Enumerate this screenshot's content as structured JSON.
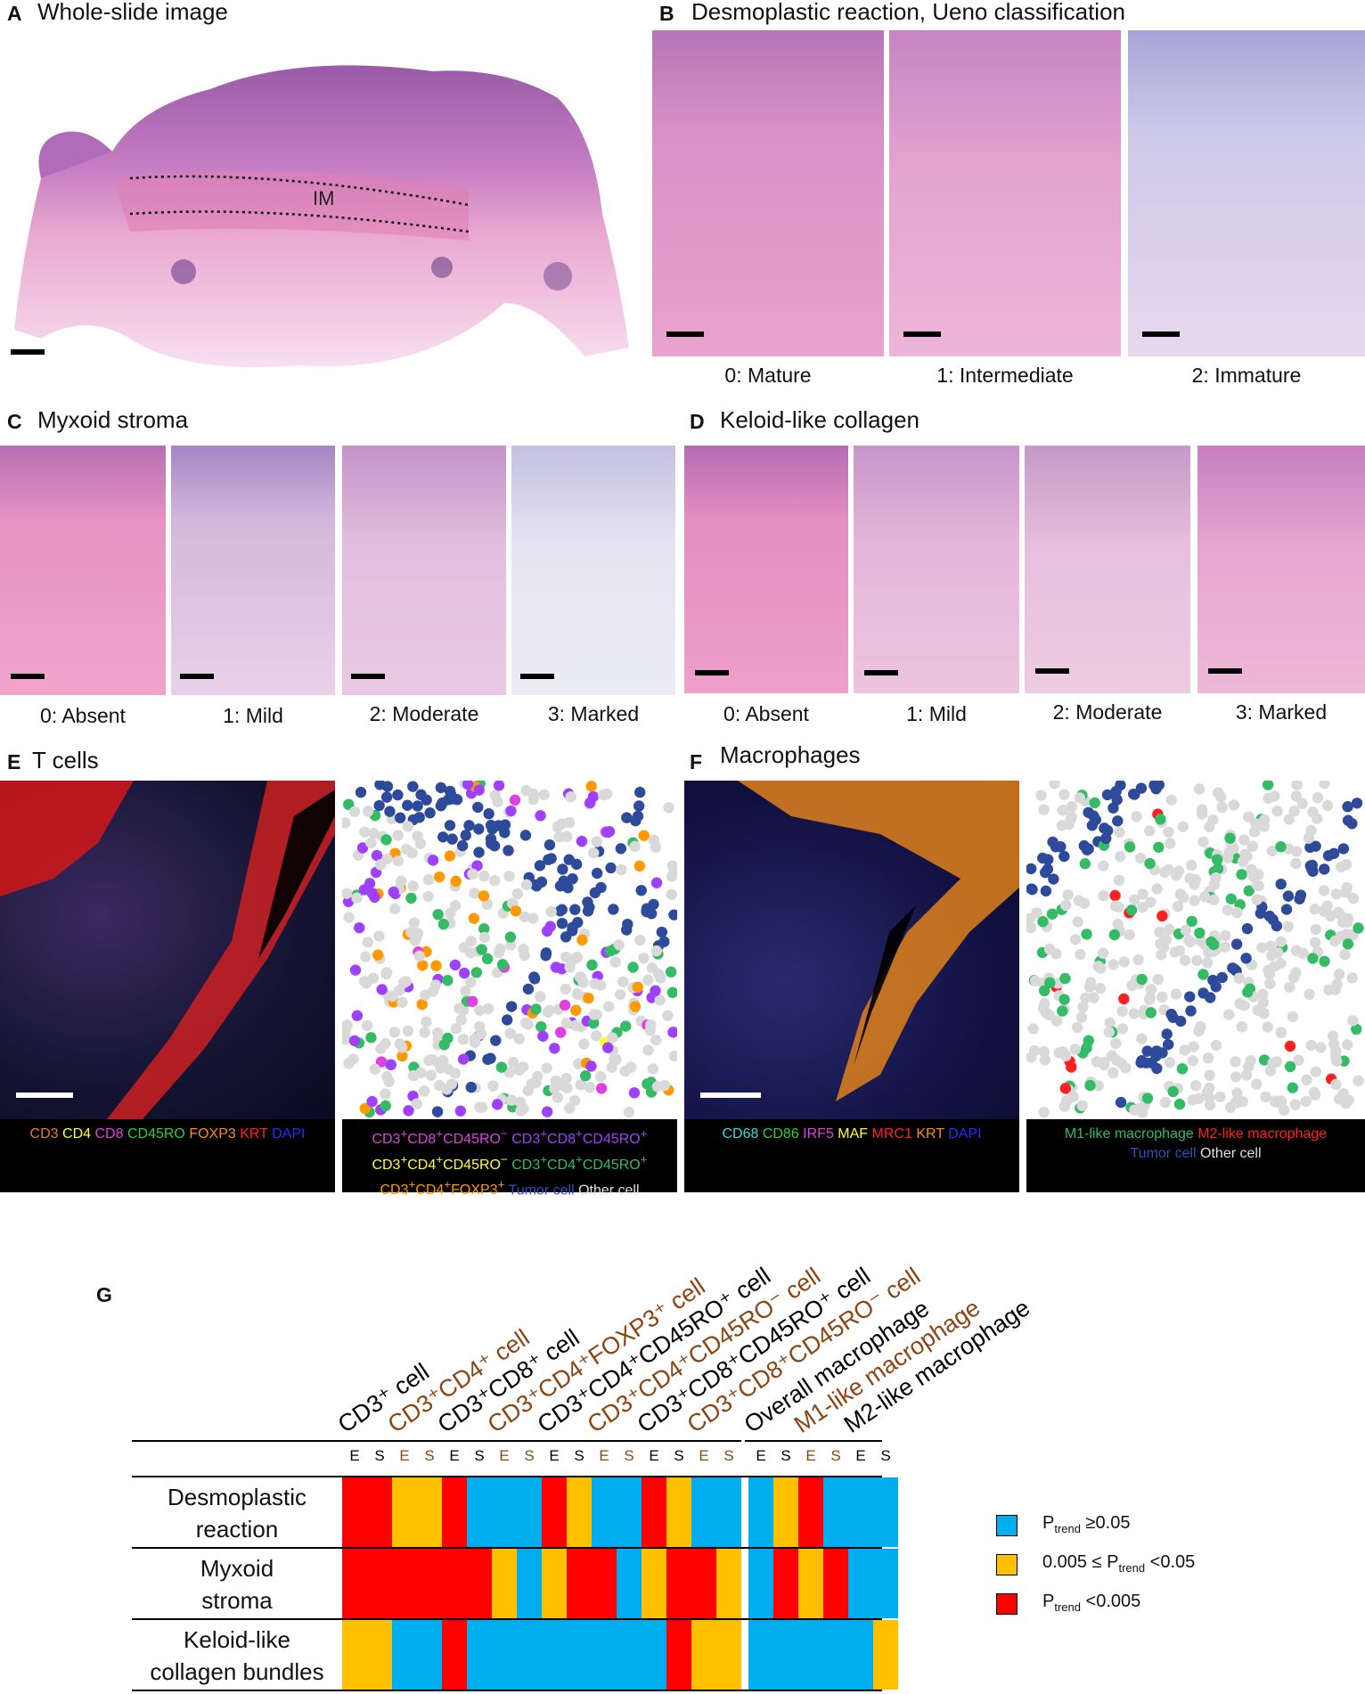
{
  "panels": {
    "A": {
      "letter": "A",
      "title": "Whole-slide image",
      "annotation": "IM"
    },
    "B": {
      "letter": "B",
      "title": "Desmoplastic reaction, Ueno classification",
      "captions": [
        "0: Mature",
        "1: Intermediate",
        "2: Immature"
      ]
    },
    "C": {
      "letter": "C",
      "title": "Myxoid stroma",
      "captions": [
        "0: Absent",
        "1: Mild",
        "2: Moderate",
        "3: Marked"
      ]
    },
    "D": {
      "letter": "D",
      "title": "Keloid-like collagen",
      "captions": [
        "0: Absent",
        "1: Mild",
        "2: Moderate",
        "3: Marked"
      ]
    },
    "E": {
      "letter": "E",
      "title": "T cells",
      "if_legend": [
        {
          "text": "CD3",
          "color": "#e87a2a"
        },
        {
          "text": "CD4",
          "color": "#ffff33"
        },
        {
          "text": "CD8",
          "color": "#e040e0"
        },
        {
          "text": "CD45RO",
          "color": "#33cc33"
        },
        {
          "text": "FOXP3",
          "color": "#ff8c1a"
        },
        {
          "text": "KRT",
          "color": "#ff2020"
        },
        {
          "text": "DAPI",
          "color": "#2a2aff"
        }
      ],
      "cell_legend": [
        {
          "text": "CD3+CD8+CD45RO-",
          "color": "#e040e0"
        },
        {
          "text": "CD3+CD8+CD45RO+",
          "color": "#a040ff"
        },
        {
          "text": "CD3+CD4+CD45RO-",
          "color": "#ffff33"
        },
        {
          "text": "CD3+CD4+CD45RO+",
          "color": "#33bb66"
        },
        {
          "text": "CD3+CD4+FOXP3+",
          "color": "#ff9900"
        },
        {
          "text": "Tumor cell",
          "color": "#3050c0"
        },
        {
          "text": "Other cell",
          "color": "#e0e0e0"
        }
      ]
    },
    "F": {
      "letter": "F",
      "title": "Macrophages",
      "if_legend": [
        {
          "text": "CD68",
          "color": "#33dddd"
        },
        {
          "text": "CD86",
          "color": "#33cc33"
        },
        {
          "text": "IRF5",
          "color": "#e040e0"
        },
        {
          "text": "MAF",
          "color": "#ffff33"
        },
        {
          "text": "MRC1",
          "color": "#ff2020"
        },
        {
          "text": "KRT",
          "color": "#ff8c1a"
        },
        {
          "text": "DAPI",
          "color": "#2a2aff"
        }
      ],
      "cell_legend": [
        {
          "text": "M1-like macrophage",
          "color": "#33bb66"
        },
        {
          "text": "M2-like macrophage",
          "color": "#ff2020"
        },
        {
          "text": "Tumor cell",
          "color": "#3050c0"
        },
        {
          "text": "Other cell",
          "color": "#e0e0e0"
        }
      ]
    },
    "G": {
      "letter": "G",
      "columns": [
        {
          "label": "CD3⁺ cell",
          "color": "#000000"
        },
        {
          "label": "CD3⁺CD4⁺ cell",
          "color": "#8b4513"
        },
        {
          "label": "CD3⁺CD8⁺ cell",
          "color": "#000000"
        },
        {
          "label": "CD3⁺CD4⁺FOXP3⁺ cell",
          "color": "#8b4513"
        },
        {
          "label": "CD3⁺CD4⁺CD45RO⁺ cell",
          "color": "#000000"
        },
        {
          "label": "CD3⁺CD4⁺CD45RO⁻ cell",
          "color": "#8b4513"
        },
        {
          "label": "CD3⁺CD8⁺CD45RO⁺ cell",
          "color": "#000000"
        },
        {
          "label": "CD3⁺CD8⁺CD45RO⁻ cell",
          "color": "#8b4513"
        },
        {
          "label": "Overall macrophage",
          "color": "#000000"
        },
        {
          "label": "M1-like macrophage",
          "color": "#8b4513"
        },
        {
          "label": "M2-like macrophage",
          "color": "#000000"
        }
      ],
      "sublabels": [
        "E",
        "S"
      ],
      "rows": [
        {
          "label": "Desmoplastic reaction",
          "line1": "Desmoplastic",
          "line2": "reaction",
          "cells": [
            "R",
            "R",
            "Y",
            "Y",
            "R",
            "B",
            "B",
            "B",
            "R",
            "Y",
            "B",
            "B",
            "R",
            "Y",
            "B",
            "B",
            "B",
            "Y",
            "R",
            "B",
            "B",
            "B"
          ]
        },
        {
          "label": "Myxoid stroma",
          "line1": "Myxoid",
          "line2": "stroma",
          "cells": [
            "R",
            "R",
            "R",
            "R",
            "R",
            "R",
            "Y",
            "B",
            "Y",
            "R",
            "R",
            "B",
            "Y",
            "R",
            "R",
            "Y",
            "B",
            "R",
            "Y",
            "R",
            "B",
            "B"
          ]
        },
        {
          "label": "Keloid-like collagen bundles",
          "line1": "Keloid-like",
          "line2": "collagen bundles",
          "cells": [
            "Y",
            "Y",
            "B",
            "B",
            "R",
            "B",
            "B",
            "B",
            "B",
            "B",
            "B",
            "B",
            "B",
            "R",
            "Y",
            "Y",
            "B",
            "B",
            "B",
            "B",
            "B",
            "Y"
          ]
        }
      ],
      "key": [
        {
          "code": "B",
          "color": "#00aeef",
          "prefix": "P",
          "sub": "trend",
          "suffix": " ≥0.05",
          "lead": ""
        },
        {
          "code": "Y",
          "color": "#ffc000",
          "prefix": "0.005 ≤ P",
          "sub": "trend",
          "suffix": " <0.05",
          "lead": ""
        },
        {
          "code": "R",
          "color": "#ff0000",
          "prefix": "P",
          "sub": "trend",
          "suffix": " <0.005",
          "lead": ""
        }
      ]
    }
  }
}
